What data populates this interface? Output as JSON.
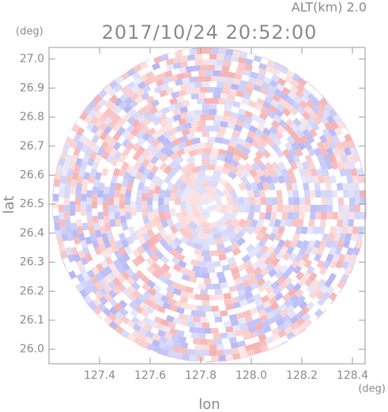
{
  "chart_data": {
    "type": "radar-ppi",
    "title": "2017/10/24 20:52:00",
    "annotation": "ALT(km) 2.0",
    "xlabel": "lon",
    "ylabel": "lat",
    "xunit": "(deg)",
    "yunit": "(deg)",
    "xlim": [
      127.2,
      128.45
    ],
    "ylim": [
      25.95,
      27.04
    ],
    "xticks": [
      127.4,
      127.6,
      127.8,
      {
        "value": 128,
        "label": "128.0"
      },
      128.2,
      128.4
    ],
    "yticks": [
      {
        "value": 26,
        "label": "26.0"
      },
      26.1,
      26.2,
      26.3,
      26.4,
      26.5,
      26.6,
      26.7,
      26.8,
      26.9,
      {
        "value": 27,
        "label": "27.0"
      }
    ],
    "colors": [
      "#f5a3a3",
      "#a9abf2"
    ]
  }
}
